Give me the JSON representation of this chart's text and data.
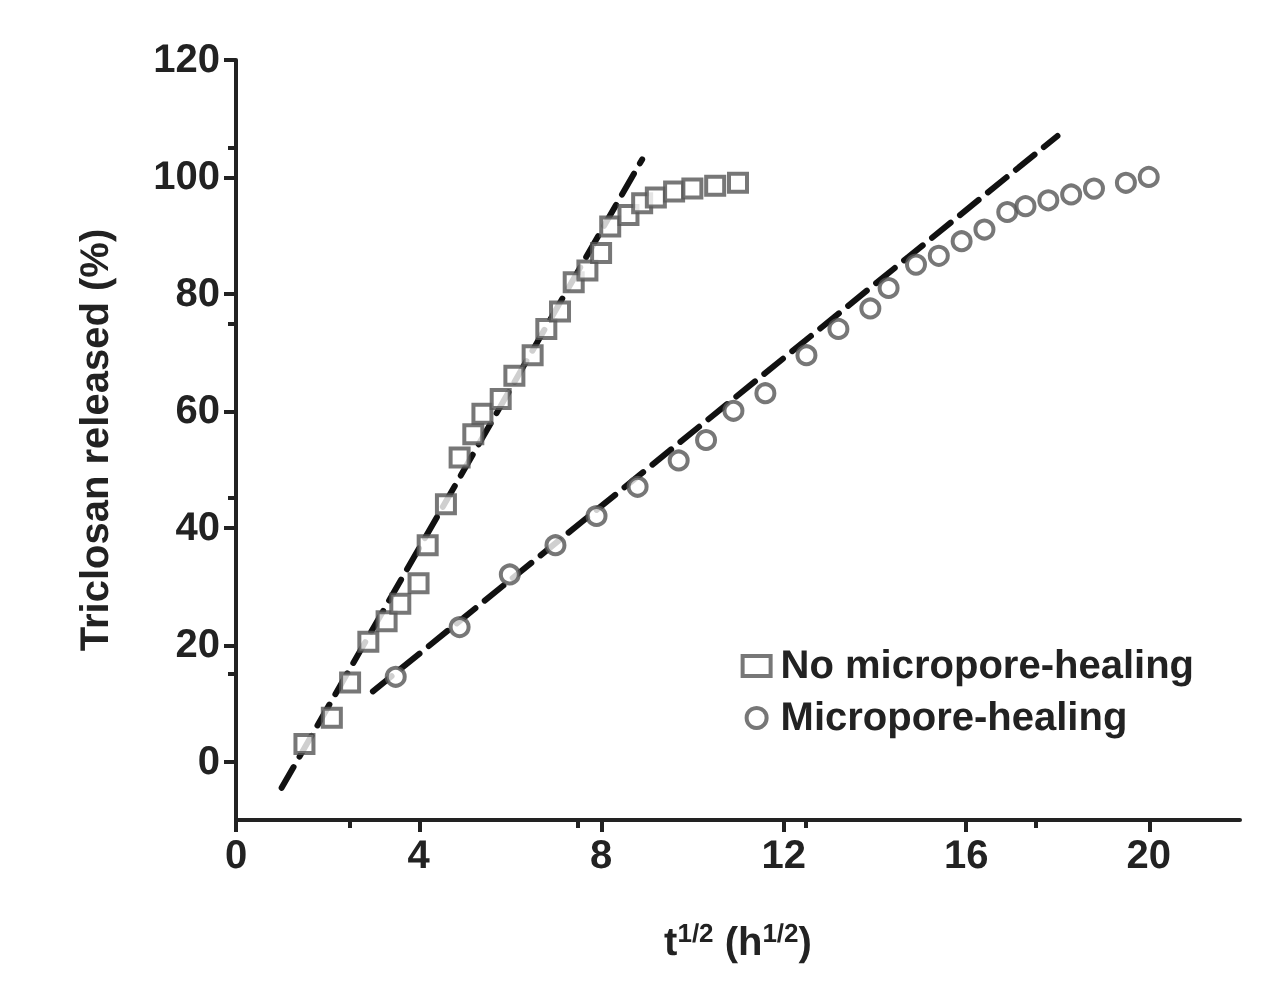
{
  "chart_data": {
    "type": "scatter",
    "xlabel": "t$^{1/2}$ (h$^{1/2}$)",
    "ylabel": "Triclosan released (%)",
    "xlim": [
      0,
      22
    ],
    "xticks": [
      0,
      4,
      8,
      12,
      16,
      20
    ],
    "ylim": [
      -10,
      120
    ],
    "yticks": [
      0,
      20,
      40,
      60,
      80,
      100,
      120
    ],
    "grid": false,
    "legend": "bottom right",
    "series": [
      {
        "name": "No micropore-healing",
        "color": "#555555",
        "marker": "square",
        "x": [
          1.5,
          2.1,
          2.5,
          2.9,
          3.3,
          3.6,
          4,
          4.2,
          4.6,
          4.9,
          5.2,
          5.4,
          5.8,
          6.1,
          6.5,
          6.8,
          7.1,
          7.4,
          7.7,
          8,
          8.2,
          8.6,
          8.9,
          9.2,
          9.6,
          10,
          10.5,
          11
        ],
        "values": [
          3,
          7.5,
          13.5,
          20.5,
          24,
          27,
          30.5,
          37,
          44,
          52,
          56,
          59.5,
          62,
          66,
          69.5,
          74,
          77,
          82,
          84,
          87,
          91.5,
          93.5,
          95.5,
          96.5,
          97.5,
          98,
          98.5,
          99
        ]
      },
      {
        "name": "Micropore-healing",
        "color": "#555555",
        "marker": "circle",
        "x": [
          3.5,
          4.9,
          6,
          7,
          7.9,
          8.8,
          9.7,
          10.3,
          10.9,
          11.6,
          12.5,
          13.2,
          13.9,
          14.3,
          14.9,
          15.4,
          15.9,
          16.4,
          16.9,
          17.3,
          17.8,
          18.3,
          18.8,
          19.5,
          20
        ],
        "values": [
          14.5,
          23,
          32,
          37,
          42,
          47,
          51.5,
          55,
          60,
          63,
          69.5,
          74,
          77.5,
          81,
          85,
          86.5,
          89,
          91,
          94,
          95,
          96,
          97,
          98,
          99,
          100
        ]
      },
      {
        "type": "line",
        "color": "#111111",
        "line_style": "dashed",
        "marker": "none",
        "x": [
          1.0,
          8.9
        ],
        "values": [
          -4.5,
          103
        ]
      },
      {
        "type": "line",
        "color": "#111111",
        "line_style": "dashed",
        "marker": "none",
        "x": [
          3.0,
          18
        ],
        "values": [
          12,
          107
        ]
      }
    ]
  }
}
